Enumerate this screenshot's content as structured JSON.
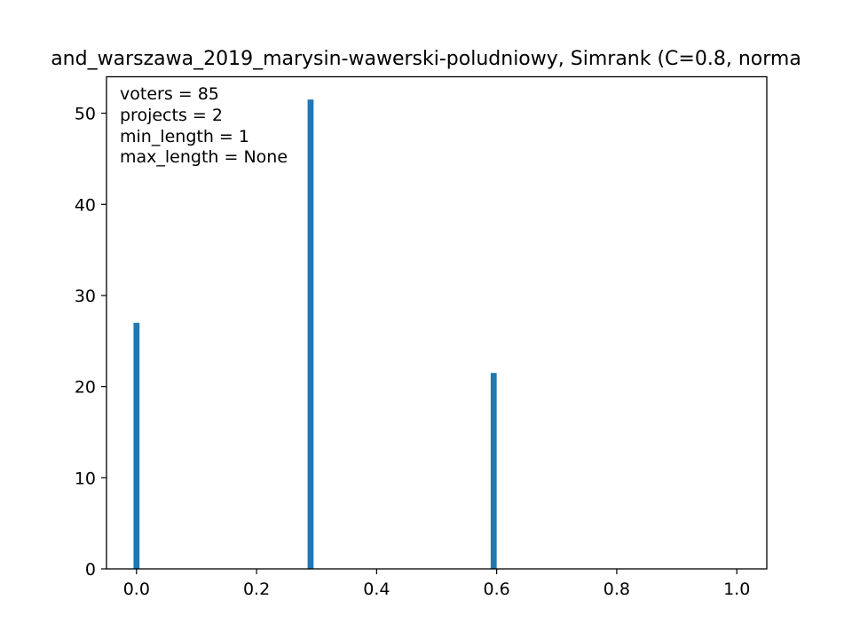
{
  "chart_data": {
    "type": "bar",
    "title": "and_warszawa_2019_marysin-wawerski-poludniowy, Simrank (C=0.8, norma",
    "xlabel": "",
    "ylabel": "",
    "xlim": [
      -0.05,
      1.05
    ],
    "ylim": [
      0,
      54
    ],
    "xticks": [
      0.0,
      0.2,
      0.4,
      0.6,
      0.8,
      1.0
    ],
    "xtick_labels": [
      "0.0",
      "0.2",
      "0.4",
      "0.6",
      "0.8",
      "1.0"
    ],
    "yticks": [
      0,
      10,
      20,
      30,
      40,
      50
    ],
    "ytick_labels": [
      "0",
      "10",
      "20",
      "30",
      "40",
      "50"
    ],
    "bar_width": 0.01,
    "bar_color": "#1f77b4",
    "bars": [
      {
        "x": 0.0,
        "value": 27.0
      },
      {
        "x": 0.29,
        "value": 51.5
      },
      {
        "x": 0.595,
        "value": 21.5
      }
    ],
    "annotations": [
      "voters = 85",
      "projects = 2",
      "min_length = 1",
      "max_length = None"
    ],
    "grid": false,
    "legend": "none"
  }
}
